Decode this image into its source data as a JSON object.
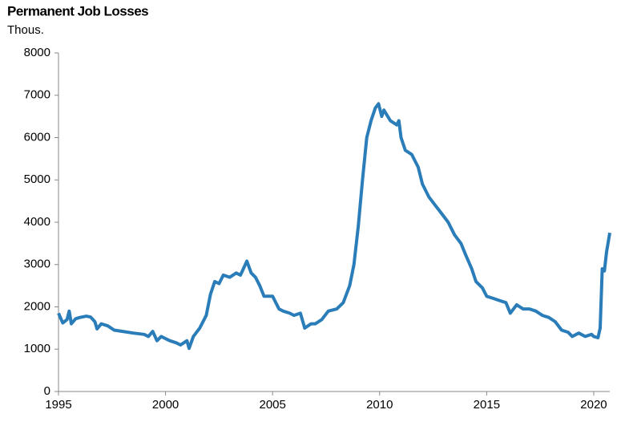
{
  "chart_data": {
    "type": "line",
    "title": "Permanent Job Losses",
    "subtitle": "Thous.",
    "x": [
      1995.0,
      1995.2,
      1995.4,
      1995.5,
      1995.6,
      1995.8,
      1996.0,
      1996.3,
      1996.5,
      1996.7,
      1996.8,
      1997.0,
      1997.3,
      1997.6,
      1998.0,
      1998.5,
      1999.0,
      1999.2,
      1999.4,
      1999.6,
      1999.8,
      2000.2,
      2000.5,
      2000.7,
      2001.0,
      2001.1,
      2001.3,
      2001.6,
      2001.9,
      2002.1,
      2002.3,
      2002.5,
      2002.7,
      2003.0,
      2003.3,
      2003.5,
      2003.8,
      2004.0,
      2004.2,
      2004.4,
      2004.6,
      2004.8,
      2005.0,
      2005.3,
      2005.5,
      2005.8,
      2006.0,
      2006.3,
      2006.5,
      2006.8,
      2007.0,
      2007.3,
      2007.6,
      2008.0,
      2008.3,
      2008.6,
      2008.8,
      2009.0,
      2009.2,
      2009.4,
      2009.6,
      2009.8,
      2009.95,
      2010.1,
      2010.2,
      2010.5,
      2010.8,
      2010.9,
      2011.0,
      2011.2,
      2011.5,
      2011.8,
      2012.0,
      2012.3,
      2012.6,
      2012.9,
      2013.2,
      2013.5,
      2013.8,
      2014.0,
      2014.3,
      2014.5,
      2014.8,
      2015.0,
      2015.3,
      2015.6,
      2015.9,
      2016.1,
      2016.4,
      2016.7,
      2017.0,
      2017.3,
      2017.6,
      2017.9,
      2018.2,
      2018.5,
      2018.8,
      2019.0,
      2019.3,
      2019.6,
      2019.9,
      2020.0,
      2020.2,
      2020.3,
      2020.4,
      2020.5,
      2020.6,
      2020.75
    ],
    "series": [
      {
        "name": "Permanent Job Losses",
        "color": "#2a7db8",
        "values": [
          1850,
          1620,
          1700,
          1900,
          1600,
          1720,
          1750,
          1780,
          1760,
          1650,
          1480,
          1600,
          1550,
          1450,
          1420,
          1380,
          1350,
          1300,
          1420,
          1200,
          1300,
          1200,
          1150,
          1100,
          1200,
          1020,
          1300,
          1500,
          1800,
          2300,
          2600,
          2550,
          2750,
          2700,
          2800,
          2750,
          3080,
          2800,
          2700,
          2500,
          2250,
          2250,
          2250,
          1950,
          1900,
          1850,
          1800,
          1850,
          1500,
          1600,
          1600,
          1700,
          1900,
          1950,
          2100,
          2500,
          3000,
          3900,
          5000,
          6000,
          6400,
          6700,
          6800,
          6500,
          6650,
          6400,
          6300,
          6400,
          6000,
          5700,
          5600,
          5300,
          4900,
          4600,
          4400,
          4200,
          4000,
          3700,
          3500,
          3250,
          2900,
          2600,
          2450,
          2250,
          2200,
          2150,
          2100,
          1850,
          2050,
          1950,
          1950,
          1900,
          1800,
          1750,
          1650,
          1450,
          1400,
          1300,
          1380,
          1300,
          1350,
          1300,
          1270,
          1500,
          2900,
          2850,
          3300,
          3750
        ]
      }
    ],
    "xlim": [
      1995,
      2020.75
    ],
    "xticks": [
      1995,
      2000,
      2005,
      2010,
      2015,
      2020
    ],
    "ylim": [
      0,
      8000
    ],
    "yticks": [
      0,
      1000,
      2000,
      3000,
      4000,
      5000,
      6000,
      7000,
      8000
    ],
    "grid": false
  }
}
